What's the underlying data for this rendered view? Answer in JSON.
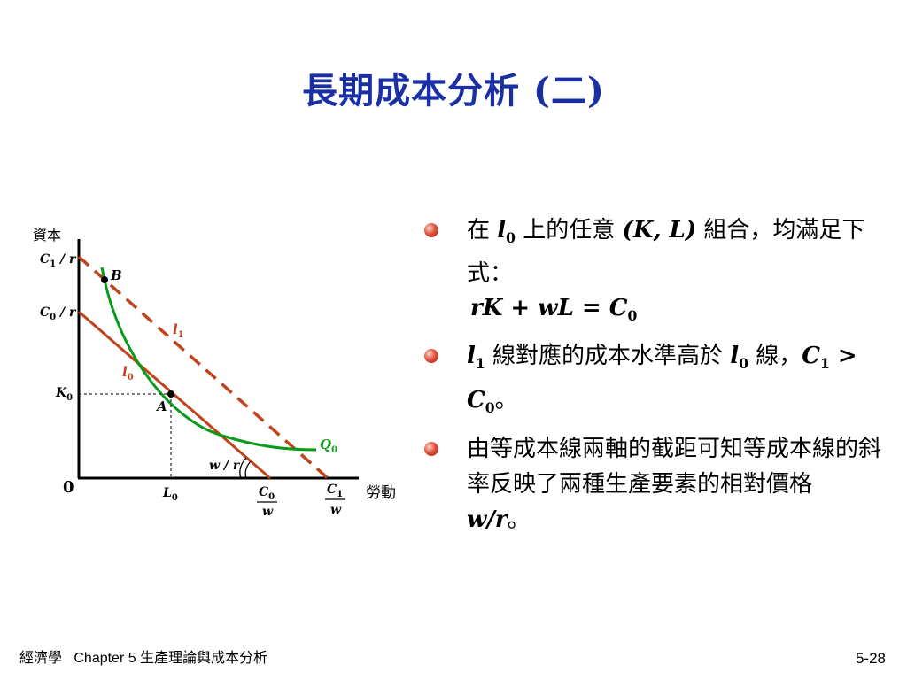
{
  "slide": {
    "title": "長期成本分析 (二)",
    "footer_course": "經濟學",
    "footer_chapter": "Chapter 5 生產理論與成本分析",
    "page_number": "5-28"
  },
  "diagram": {
    "y_axis_label": "資本",
    "x_axis_label": "勞動",
    "origin_label": "0",
    "y_ticks": [
      {
        "var": "C",
        "sub": "1",
        "tail": " / r"
      },
      {
        "var": "C",
        "sub": "0",
        "tail": " / r"
      },
      {
        "var": "K",
        "sub": "0",
        "tail": ""
      }
    ],
    "x_ticks": [
      {
        "var": "L",
        "sub": "0"
      },
      {
        "num_var": "C",
        "num_sub": "0",
        "den": "w"
      },
      {
        "num_var": "C",
        "num_sub": "1",
        "den": "w"
      }
    ],
    "curve_labels": {
      "l1": {
        "var": "l",
        "sub": "1"
      },
      "l0": {
        "var": "l",
        "sub": "0"
      },
      "q0": {
        "var": "Q",
        "sub": "0"
      }
    },
    "point_labels": {
      "a": "A",
      "b": "B"
    },
    "slope_label": "w / r",
    "colors": {
      "isocost": "#c0431c",
      "isoquant": "#0a9a1a",
      "axis": "#000000"
    }
  },
  "bullets": [
    {
      "pre": "在 ",
      "v1": "l",
      "s1": "0",
      "mid": " 上的任意 ",
      "paren": "(K, L)",
      "post": " 組合，均滿足下式："
    },
    {
      "v1": "l",
      "s1": "1",
      "mid": " 線對應的成本水準高於 ",
      "v2": "l",
      "s2": "0",
      "mid2": " 線，",
      "c1": "C",
      "c1s": "1",
      "gt": " > ",
      "c0": "C",
      "c0s": "0",
      "end": "。"
    },
    {
      "text": "由等成本線兩軸的截距可知等成本線的斜率反映了兩種生產要素的相對價格 ",
      "wr": "w/r",
      "end": "。"
    }
  ],
  "formula": {
    "lhs": "rK + wL = C",
    "sub": "0"
  }
}
